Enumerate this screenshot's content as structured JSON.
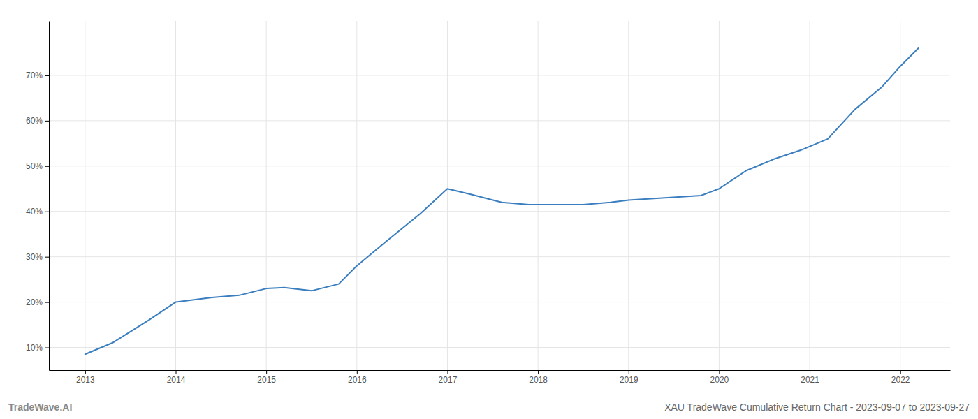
{
  "chart_data": {
    "type": "line",
    "title": "XAU TradeWave Cumulative Return Chart - 2023-09-07 to 2023-09-27",
    "annotations": [
      "TradeWave.AI"
    ],
    "x": [
      2013.0,
      2013.3,
      2013.7,
      2014.0,
      2014.4,
      2014.7,
      2015.0,
      2015.2,
      2015.5,
      2015.8,
      2016.0,
      2016.3,
      2016.7,
      2017.0,
      2017.25,
      2017.6,
      2017.9,
      2018.2,
      2018.5,
      2018.8,
      2019.0,
      2019.4,
      2019.8,
      2020.0,
      2020.3,
      2020.6,
      2020.9,
      2021.2,
      2021.5,
      2021.8,
      2022.0,
      2022.2
    ],
    "values": [
      8.5,
      11.0,
      16.0,
      20.0,
      21.0,
      21.5,
      23.0,
      23.2,
      22.5,
      24.0,
      28.0,
      33.0,
      39.5,
      45.0,
      43.8,
      42.0,
      41.5,
      41.5,
      41.5,
      42.0,
      42.5,
      43.0,
      43.5,
      45.0,
      49.0,
      51.5,
      53.5,
      56.0,
      62.5,
      67.5,
      72.0,
      76.0
    ],
    "color": "#3a7ebf",
    "xlim": [
      2012.6,
      2022.55
    ],
    "ylim": [
      5,
      82
    ],
    "xticks": [
      2013,
      2014,
      2015,
      2016,
      2017,
      2018,
      2019,
      2020,
      2021,
      2022
    ],
    "yticks": [
      {
        "value": 10,
        "label": "10%"
      },
      {
        "value": 20,
        "label": "20%"
      },
      {
        "value": 30,
        "label": "30%"
      },
      {
        "value": 40,
        "label": "40%"
      },
      {
        "value": 50,
        "label": "50%"
      },
      {
        "value": 60,
        "label": "60%"
      },
      {
        "value": 70,
        "label": "70%"
      }
    ],
    "grid": true
  }
}
